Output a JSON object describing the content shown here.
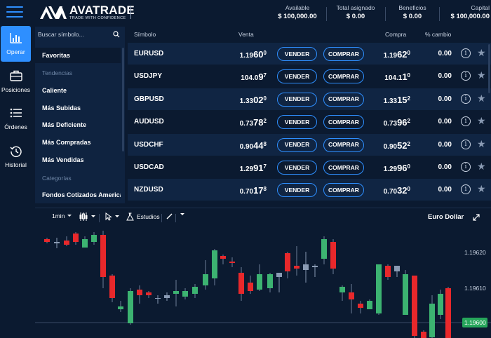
{
  "header": {
    "logo_name": "AVATRADE",
    "logo_tagline": "TRADE WITH CONFIDENCE",
    "account": [
      {
        "label": "Available",
        "value": "$ 100,000.00"
      },
      {
        "label": "Total asignado",
        "value": "$ 0.00"
      },
      {
        "label": "Beneficios",
        "value": "$ 0.00"
      },
      {
        "label": "Capital",
        "value": "$ 100,000.00"
      }
    ]
  },
  "nav": [
    {
      "label": "Operar",
      "icon": "bar-chart-icon"
    },
    {
      "label": "Posiciones",
      "icon": "briefcase-icon"
    },
    {
      "label": "Órdenes",
      "icon": "list-icon"
    },
    {
      "label": "Historial",
      "icon": "history-icon"
    }
  ],
  "categories": {
    "search_placeholder": "Buscar símbolo...",
    "favorites": "Favoritas",
    "trends_header": "Tendencias",
    "trends": [
      "Caliente",
      "Más Subidas",
      "Más Deficiente",
      "Más Compradas",
      "Más Vendidas"
    ],
    "categories_header": "Categorías",
    "category_items": [
      "Fondos Cotizados Americanos"
    ]
  },
  "table": {
    "headers": {
      "symbol": "Símbolo",
      "sell": "Venta",
      "buy": "Compra",
      "change": "% cambio"
    },
    "sell_label": "VENDER",
    "buy_label": "COMPRAR",
    "rows": [
      {
        "symbol": "EURUSD",
        "sell_pre": "1.19",
        "sell_big": "60",
        "sell_small": "0",
        "buy_pre": "1.19",
        "buy_big": "62",
        "buy_small": "0",
        "change": "0.00"
      },
      {
        "symbol": "USDJPY",
        "sell_pre": "104.0",
        "sell_big": "9",
        "sell_small": "7",
        "buy_pre": "104.1",
        "buy_big": "1",
        "buy_small": "0",
        "change": "0.00"
      },
      {
        "symbol": "GBPUSD",
        "sell_pre": "1.33",
        "sell_big": "02",
        "sell_small": "0",
        "buy_pre": "1.33",
        "buy_big": "15",
        "buy_small": "2",
        "change": "0.00"
      },
      {
        "symbol": "AUDUSD",
        "sell_pre": "0.73",
        "sell_big": "78",
        "sell_small": "2",
        "buy_pre": "0.73",
        "buy_big": "96",
        "buy_small": "2",
        "change": "0.00"
      },
      {
        "symbol": "USDCHF",
        "sell_pre": "0.90",
        "sell_big": "44",
        "sell_small": "8",
        "buy_pre": "0.90",
        "buy_big": "52",
        "buy_small": "2",
        "change": "0.00"
      },
      {
        "symbol": "USDCAD",
        "sell_pre": "1.29",
        "sell_big": "91",
        "sell_small": "7",
        "buy_pre": "1.29",
        "buy_big": "96",
        "buy_small": "0",
        "change": "0.00"
      },
      {
        "symbol": "NZDUSD",
        "sell_pre": "0.70",
        "sell_big": "17",
        "sell_small": "8",
        "buy_pre": "0.70",
        "buy_big": "32",
        "buy_small": "0",
        "change": "0.00"
      }
    ]
  },
  "chart": {
    "interval": "1min",
    "studies_label": "Estudios",
    "title": "Euro Dollar",
    "price_labels": [
      "1.19620",
      "1.19610"
    ],
    "current_price": "1.19600",
    "colors": {
      "up": "#3cb371",
      "down": "#e8282b",
      "accent": "#2e8fff",
      "current": "#26a65b"
    }
  }
}
